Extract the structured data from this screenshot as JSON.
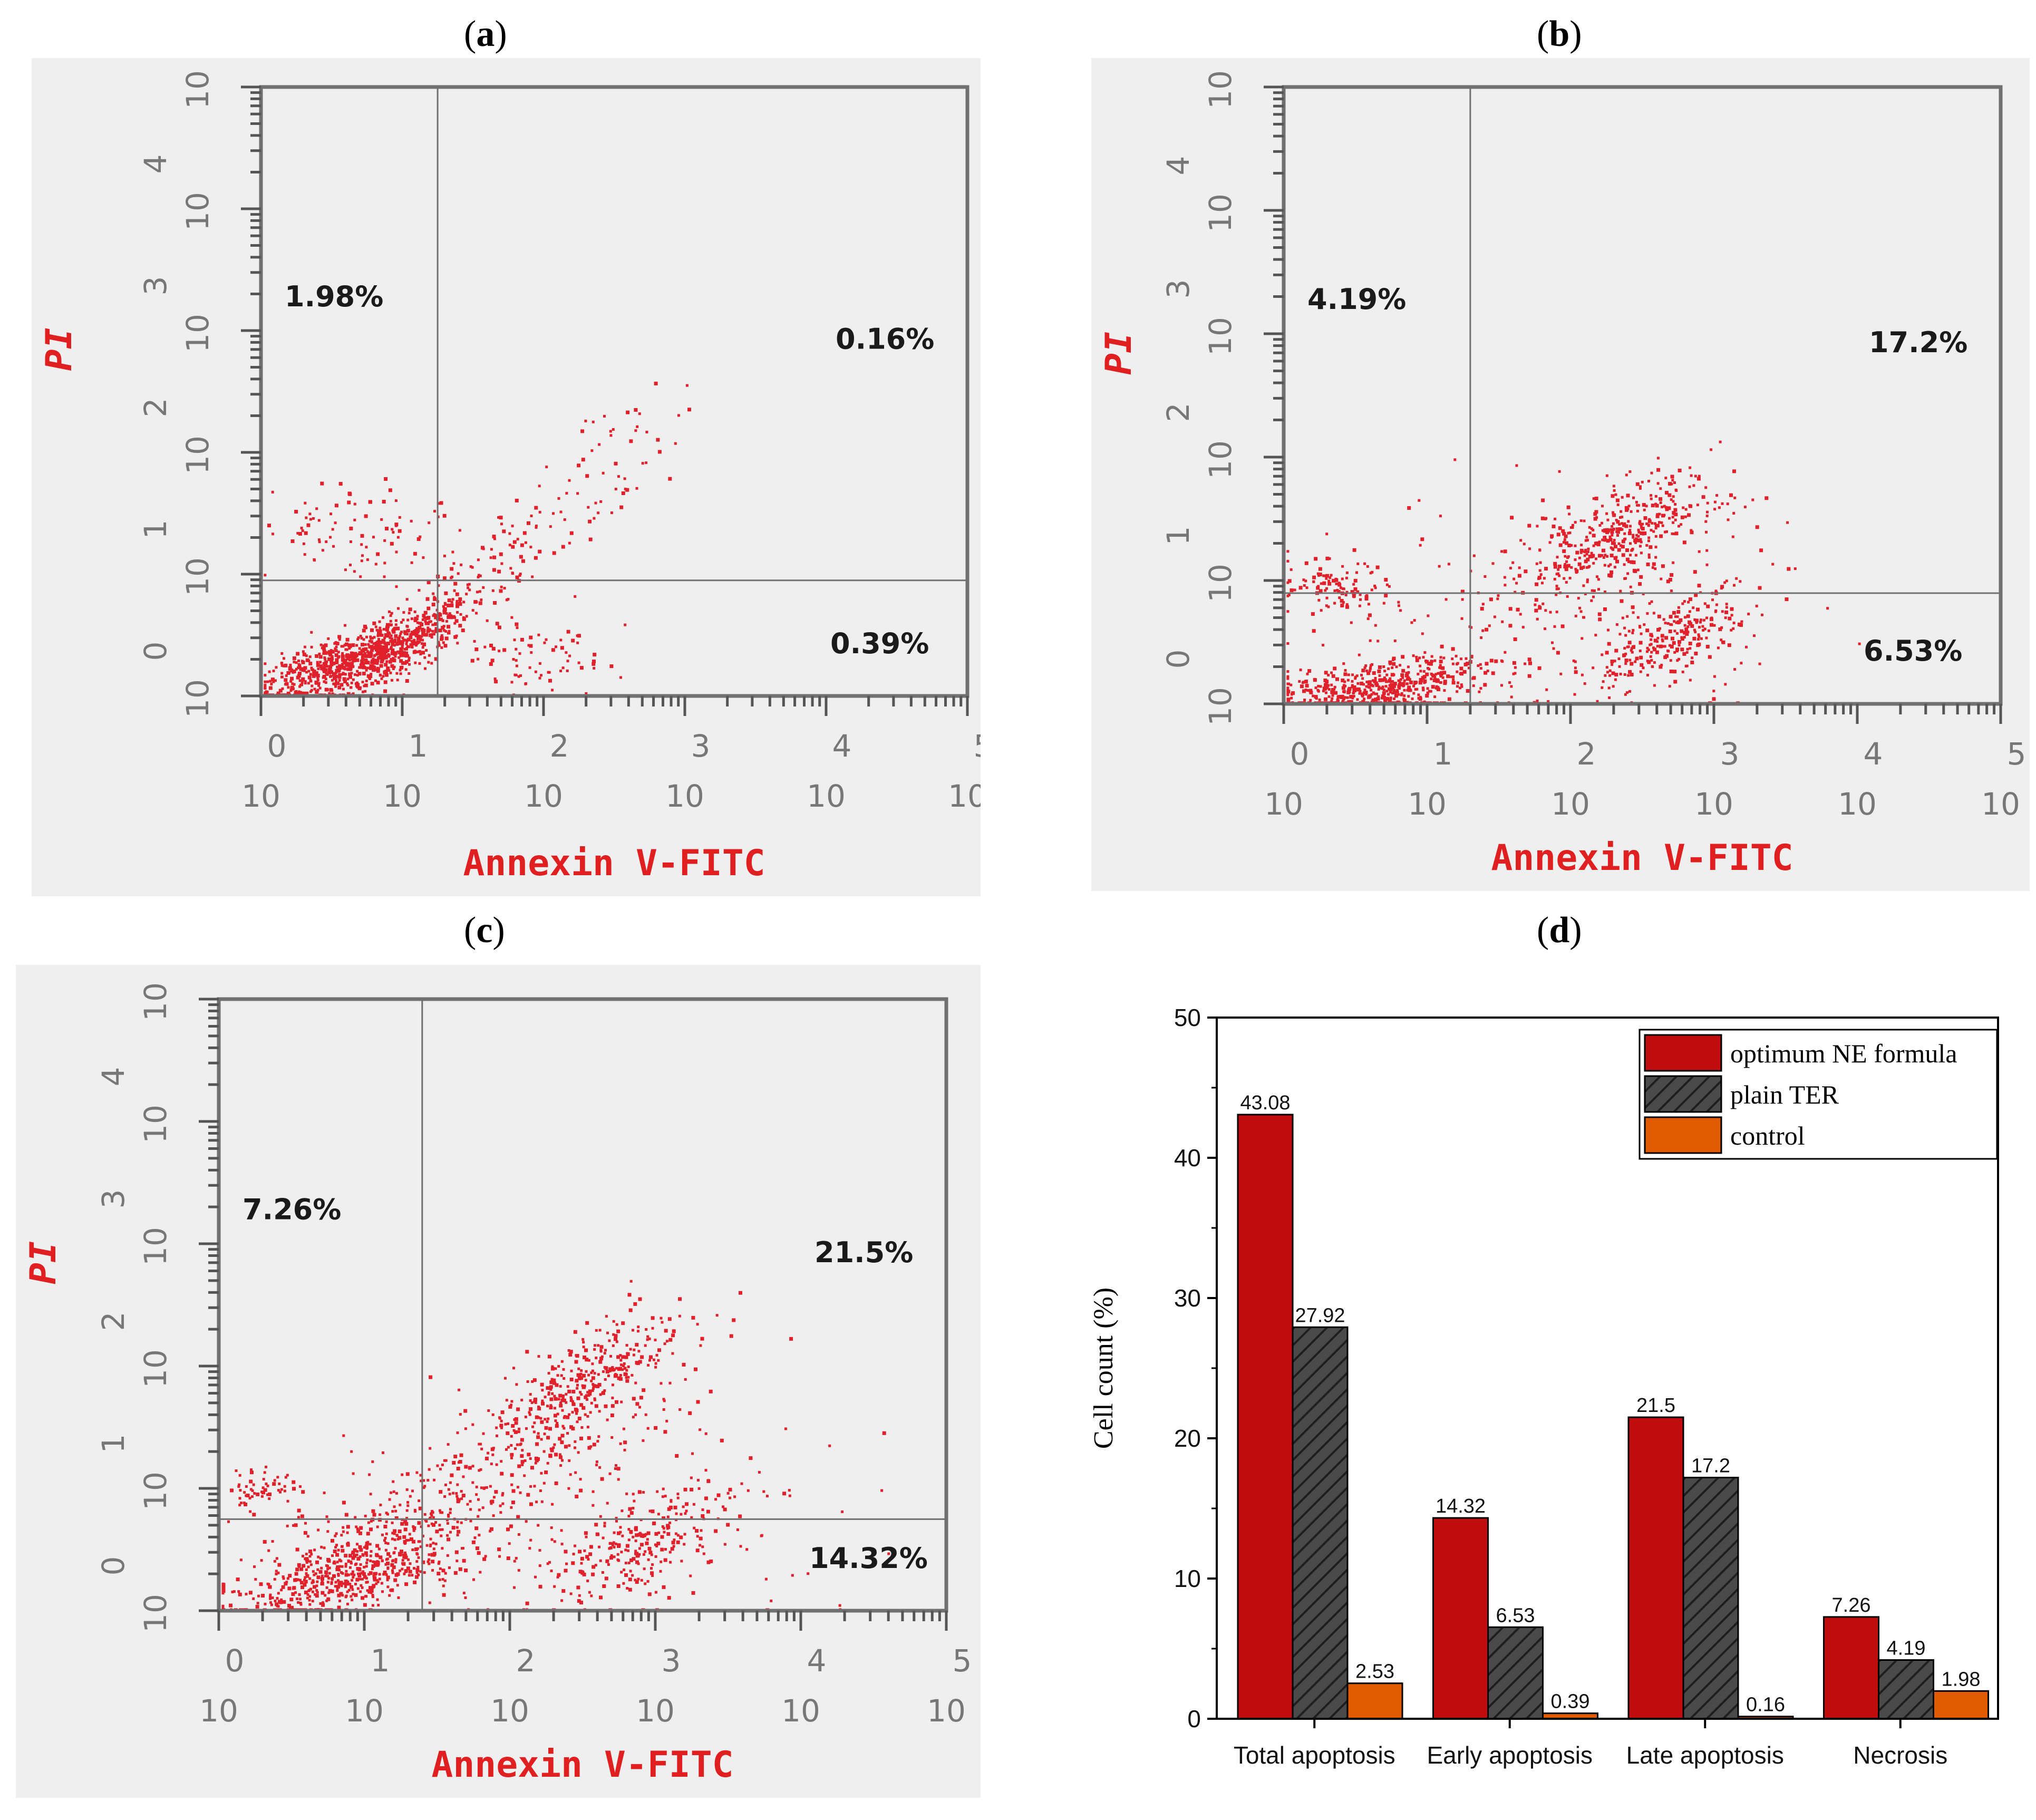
{
  "panel_labels": [
    "(a)",
    "(b)",
    "(c)",
    "(d)"
  ],
  "flow": {
    "xaxis_title": "Annexin V-FITC",
    "yaxis_title": "PI",
    "tick_base": "10",
    "tick_exponents": [
      "0",
      "1",
      "2",
      "3",
      "4",
      "5"
    ],
    "colors": {
      "axis_title": "#e02020",
      "dots": "#e0202a",
      "frame": "#707070",
      "bg": "#efefef",
      "text": "#1a1a1a"
    }
  },
  "chart_data": [
    {
      "type": "scatter",
      "panel": "(a)",
      "xlabel": "Annexin V-FITC",
      "ylabel": "PI",
      "xscale": "log",
      "yscale": "log",
      "xlim": [
        1,
        100000
      ],
      "ylim": [
        1,
        100000
      ],
      "gate_x": 17.8,
      "gate_y": 8.9,
      "quadrants": {
        "upper_left": "1.98%",
        "upper_right": "0.16%",
        "lower_right": "0.39%"
      },
      "populations": [
        {
          "cx": 0.55,
          "cy": 0.25,
          "sx": 0.35,
          "sy": 0.2,
          "n": 700,
          "corr": 0.75
        },
        {
          "cx": 1.05,
          "cy": 0.5,
          "sx": 0.22,
          "sy": 0.18,
          "n": 260,
          "corr": 0.8
        },
        {
          "cx": 0.6,
          "cy": 1.4,
          "sx": 0.35,
          "sy": 0.2,
          "n": 90,
          "corr": 0
        },
        {
          "cx": 1.7,
          "cy": 1.1,
          "sx": 0.55,
          "sy": 0.45,
          "n": 160,
          "corr": 0.9
        },
        {
          "cx": 2.55,
          "cy": 2.2,
          "sx": 0.4,
          "sy": 0.3,
          "n": 25,
          "corr": 0.9
        },
        {
          "cx": 1.95,
          "cy": 0.3,
          "sx": 0.25,
          "sy": 0.15,
          "n": 70,
          "corr": 0
        }
      ]
    },
    {
      "type": "scatter",
      "panel": "(b)",
      "xlabel": "Annexin V-FITC",
      "ylabel": "PI",
      "xscale": "log",
      "yscale": "log",
      "xlim": [
        1,
        100000
      ],
      "ylim": [
        1,
        100000
      ],
      "gate_x": 20,
      "gate_y": 7.9,
      "quadrants": {
        "upper_left": "4.19%",
        "upper_right": "17.2%",
        "lower_right": "6.53%"
      },
      "populations": [
        {
          "cx": 0.7,
          "cy": 0.15,
          "sx": 0.35,
          "sy": 0.12,
          "n": 500,
          "corr": 0.4
        },
        {
          "cx": 0.35,
          "cy": 0.95,
          "sx": 0.18,
          "sy": 0.12,
          "n": 110,
          "corr": 0
        },
        {
          "cx": 2.4,
          "cy": 1.4,
          "sx": 0.35,
          "sy": 0.25,
          "n": 420,
          "corr": 0.6
        },
        {
          "cx": 2.7,
          "cy": 0.55,
          "sx": 0.3,
          "sy": 0.22,
          "n": 260,
          "corr": 0.6
        },
        {
          "cx": 1.8,
          "cy": 0.7,
          "sx": 0.7,
          "sy": 0.45,
          "n": 200,
          "corr": 0
        }
      ]
    },
    {
      "type": "scatter",
      "panel": "(c)",
      "xlabel": "Annexin V-FITC",
      "ylabel": "PI",
      "xscale": "log",
      "yscale": "log",
      "xlim": [
        1,
        100000
      ],
      "ylim": [
        1,
        100000
      ],
      "gate_x": 25,
      "gate_y": 5.6,
      "quadrants": {
        "upper_left": "7.26%",
        "upper_right": "21.5%",
        "lower_right": "14.32%"
      },
      "populations": [
        {
          "cx": 0.75,
          "cy": 0.25,
          "sx": 0.4,
          "sy": 0.18,
          "n": 420,
          "corr": 0.5
        },
        {
          "cx": 0.3,
          "cy": 1.0,
          "sx": 0.15,
          "sy": 0.12,
          "n": 60,
          "corr": 0
        },
        {
          "cx": 1.1,
          "cy": 0.55,
          "sx": 0.3,
          "sy": 0.25,
          "n": 220,
          "corr": 0.4
        },
        {
          "cx": 2.55,
          "cy": 1.95,
          "sx": 0.3,
          "sy": 0.25,
          "n": 300,
          "corr": 0.7
        },
        {
          "cx": 2.0,
          "cy": 1.2,
          "sx": 0.6,
          "sy": 0.45,
          "n": 300,
          "corr": 0.8
        },
        {
          "cx": 2.9,
          "cy": 0.55,
          "sx": 0.35,
          "sy": 0.25,
          "n": 240,
          "corr": 0.7
        },
        {
          "cx": 2.6,
          "cy": 0.9,
          "sx": 0.8,
          "sy": 0.55,
          "n": 140,
          "corr": 0
        }
      ]
    },
    {
      "type": "bar",
      "panel": "(d)",
      "categories": [
        "Total apoptosis",
        "Early apoptosis",
        "Late apoptosis",
        "Necrosis"
      ],
      "series": [
        {
          "name": "optimum NE formula",
          "values": [
            43.08,
            14.32,
            21.5,
            7.26
          ],
          "labels": [
            "43.08",
            "14.32",
            "21.5",
            "7.26"
          ],
          "color": "#c00d0d"
        },
        {
          "name": "plain TER",
          "values": [
            27.92,
            6.53,
            17.2,
            4.19
          ],
          "labels": [
            "27.92",
            "6.53",
            "17.2",
            "4.19"
          ],
          "color": "#4a4a4a",
          "hatch": true
        },
        {
          "name": "control",
          "values": [
            2.53,
            0.39,
            0.16,
            1.98
          ],
          "labels": [
            "2.53",
            "0.39",
            "0.16",
            "1.98"
          ],
          "color": "#e05a00"
        }
      ],
      "ylabel": "Cell count (%)",
      "ylim": [
        0,
        50
      ],
      "yticks": [
        "0",
        "10",
        "20",
        "30",
        "40",
        "50"
      ],
      "legend": "top-right"
    }
  ]
}
